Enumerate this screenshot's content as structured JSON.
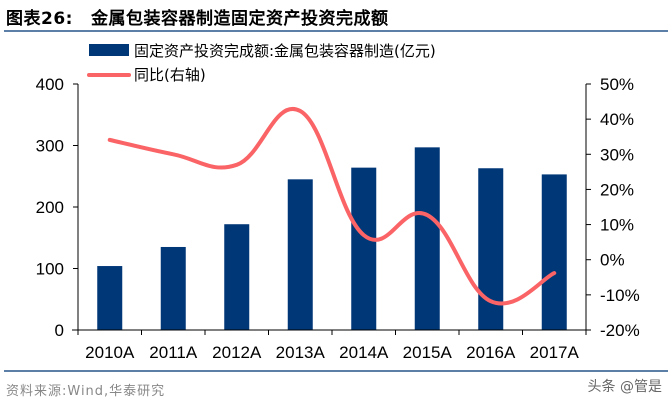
{
  "header": {
    "figure_number": "图表26:",
    "title": "金属包装容器制造固定资产投资完成额"
  },
  "footer": {
    "source": "资料来源:Wind,华泰研究",
    "watermark": "头条 @管是"
  },
  "colors": {
    "bar": "#003777",
    "line": "#fa6466",
    "rule": "#5b7fa6"
  },
  "chart_data": {
    "type": "bar",
    "title": "金属包装容器制造固定资产投资完成额",
    "categories": [
      "2010A",
      "2011A",
      "2012A",
      "2013A",
      "2014A",
      "2015A",
      "2016A",
      "2017A"
    ],
    "series": [
      {
        "name": "固定资产投资完成额:金属包装容器制造(亿元)",
        "type": "bar",
        "axis": "left",
        "values": [
          104,
          135,
          172,
          245,
          264,
          297,
          263,
          253
        ]
      },
      {
        "name": "同比(右轴)",
        "type": "line",
        "axis": "right",
        "unit": "%",
        "values": [
          34.1,
          30.0,
          27.0,
          42.3,
          7.0,
          12.7,
          -11.8,
          -3.8
        ]
      }
    ],
    "left_axis": {
      "ylim": [
        0,
        400
      ],
      "ticks": [
        "0",
        "100",
        "200",
        "300",
        "400"
      ]
    },
    "right_axis": {
      "ylim": [
        -20,
        50
      ],
      "ticks": [
        "-20%",
        "-10%",
        "0%",
        "10%",
        "20%",
        "30%",
        "40%",
        "50%"
      ]
    },
    "legend_position": "top-left",
    "grid": false
  }
}
